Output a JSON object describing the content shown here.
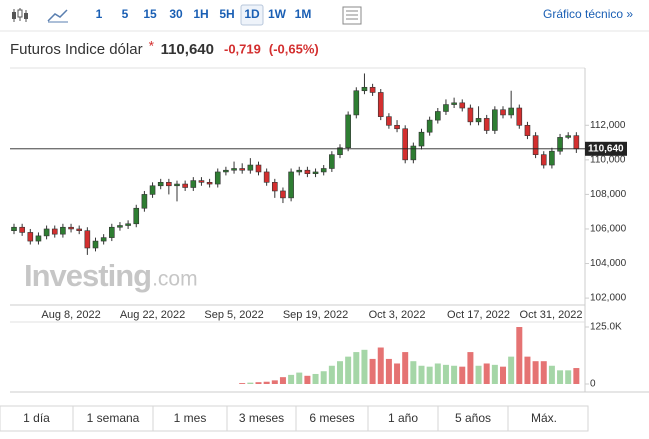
{
  "toolbar": {
    "intervals": [
      "1",
      "5",
      "15",
      "30",
      "1H",
      "5H",
      "1D",
      "1W",
      "1M"
    ],
    "selected": "1D",
    "link": "Gráfico técnico »"
  },
  "header": {
    "name": "Futuros Indice dólar",
    "price": "110,640",
    "change": "-0,719",
    "change_pct": "(-0,65%)"
  },
  "watermark": {
    "brand": "Investing",
    "suffix": ".com"
  },
  "chart_data": {
    "type": "candlestick",
    "categories": [
      null,
      null,
      null,
      null,
      null,
      null,
      null,
      "Aug 8, 2022",
      null,
      null,
      null,
      null,
      null,
      null,
      null,
      null,
      null,
      "Aug 22, 2022",
      null,
      null,
      null,
      null,
      null,
      null,
      null,
      null,
      null,
      "Sep 5, 2022",
      null,
      null,
      null,
      null,
      null,
      null,
      null,
      null,
      null,
      "Sep 19, 2022",
      null,
      null,
      null,
      null,
      null,
      null,
      null,
      null,
      null,
      "Oct 3, 2022",
      null,
      null,
      null,
      null,
      null,
      null,
      null,
      null,
      null,
      "Oct 17, 2022",
      null,
      null,
      null,
      null,
      null,
      null,
      null,
      null,
      null,
      "Oct 31, 2022",
      null,
      null
    ],
    "open": [
      105900,
      106100,
      105800,
      105300,
      105600,
      106000,
      105700,
      106100,
      106000,
      105900,
      104900,
      105300,
      105500,
      106100,
      106200,
      106300,
      107200,
      108000,
      108500,
      108700,
      108500,
      108600,
      108400,
      108800,
      108700,
      108600,
      109300,
      109400,
      109500,
      109400,
      109700,
      109300,
      108700,
      108200,
      107800,
      109300,
      109400,
      109200,
      109300,
      109500,
      110300,
      110700,
      112600,
      114000,
      114200,
      113900,
      112500,
      112000,
      111800,
      110000,
      110800,
      111600,
      112300,
      112800,
      113200,
      113300,
      113000,
      112200,
      112400,
      111700,
      112900,
      112600,
      113000,
      112000,
      111400,
      110300,
      109700,
      110500,
      111300,
      111400
    ],
    "high": [
      106300,
      106300,
      106000,
      105800,
      106200,
      106200,
      106300,
      106300,
      106200,
      106100,
      105500,
      105700,
      106300,
      106400,
      106500,
      107400,
      108200,
      108700,
      108900,
      108900,
      108800,
      108800,
      109000,
      109000,
      108900,
      109500,
      109600,
      109900,
      109800,
      110100,
      109900,
      109500,
      108900,
      108400,
      109500,
      109600,
      109600,
      109500,
      109700,
      110500,
      110900,
      112800,
      114200,
      115000,
      114400,
      114100,
      112700,
      112300,
      112000,
      111000,
      111800,
      112500,
      113000,
      113500,
      113600,
      113500,
      113200,
      113100,
      112600,
      113100,
      113100,
      114000,
      113200,
      112200,
      111600,
      110500,
      110700,
      111500,
      111600,
      111600
    ],
    "low": [
      105700,
      105600,
      105100,
      105100,
      105400,
      105500,
      105500,
      105800,
      105700,
      104500,
      104700,
      105100,
      105300,
      105900,
      106000,
      106100,
      107000,
      107800,
      108300,
      108000,
      107600,
      108200,
      108200,
      108500,
      108400,
      108400,
      109100,
      109200,
      109200,
      109200,
      109100,
      108500,
      107800,
      107500,
      107600,
      109100,
      109000,
      109000,
      109100,
      109300,
      110100,
      110500,
      112400,
      113800,
      113700,
      112300,
      111800,
      111600,
      109800,
      109800,
      110600,
      111400,
      112100,
      112600,
      113000,
      112800,
      112000,
      112000,
      111500,
      111500,
      112400,
      112400,
      111800,
      111200,
      110100,
      109500,
      109500,
      110300,
      111200,
      110400
    ],
    "close": [
      106100,
      105800,
      105300,
      105600,
      106000,
      105700,
      106100,
      106000,
      105900,
      104900,
      105300,
      105500,
      106100,
      106200,
      106300,
      107200,
      108000,
      108500,
      108700,
      108500,
      108600,
      108400,
      108800,
      108700,
      108600,
      109300,
      109400,
      109500,
      109400,
      109700,
      109300,
      108700,
      108200,
      107800,
      109300,
      109400,
      109200,
      109300,
      109500,
      110300,
      110700,
      112600,
      114000,
      114200,
      113900,
      112500,
      112000,
      111800,
      110000,
      110800,
      111600,
      112300,
      112800,
      113200,
      113300,
      113000,
      112200,
      112400,
      111700,
      112900,
      112600,
      113000,
      112000,
      111400,
      110300,
      109700,
      110500,
      111300,
      111400,
      110640
    ],
    "up_color": "#2e7d32",
    "down_color": "#d32f2f",
    "ylim": [
      101600,
      115200
    ],
    "yticks": [
      {
        "value": 102000,
        "label": "102,000"
      },
      {
        "value": 104000,
        "label": "104,000"
      },
      {
        "value": 106000,
        "label": "106,000"
      },
      {
        "value": 108000,
        "label": "108,000"
      },
      {
        "value": 110000,
        "label": "110,000"
      },
      {
        "value": 112000,
        "label": "112,000"
      }
    ],
    "last_price": {
      "value": 110640,
      "label": "110,640"
    },
    "volume": [
      null,
      null,
      null,
      null,
      null,
      null,
      null,
      null,
      null,
      null,
      null,
      null,
      null,
      null,
      null,
      null,
      null,
      null,
      null,
      null,
      null,
      null,
      null,
      null,
      null,
      null,
      null,
      null,
      2000,
      3000,
      4000,
      5000,
      8000,
      15000,
      20000,
      25000,
      18000,
      22000,
      28000,
      40000,
      50000,
      60000,
      70000,
      75000,
      55000,
      80000,
      55000,
      45000,
      70000,
      50000,
      40000,
      38000,
      45000,
      42000,
      40000,
      38000,
      70000,
      40000,
      45000,
      42000,
      38000,
      60000,
      125000,
      60000,
      50000,
      50000,
      40000,
      30000,
      30000,
      35000
    ],
    "volume_up_color": "#a5d6a7",
    "volume_down_color": "#e57373",
    "volume_lim": [
      0,
      125000
    ],
    "volume_ticks": [
      0,
      {
        "value": 125000,
        "label": "125.0K"
      }
    ]
  },
  "ranges": [
    "1 día",
    "1 semana",
    "1 mes",
    "3 meses",
    "6 meses",
    "1 año",
    "5 años",
    "Máx."
  ]
}
